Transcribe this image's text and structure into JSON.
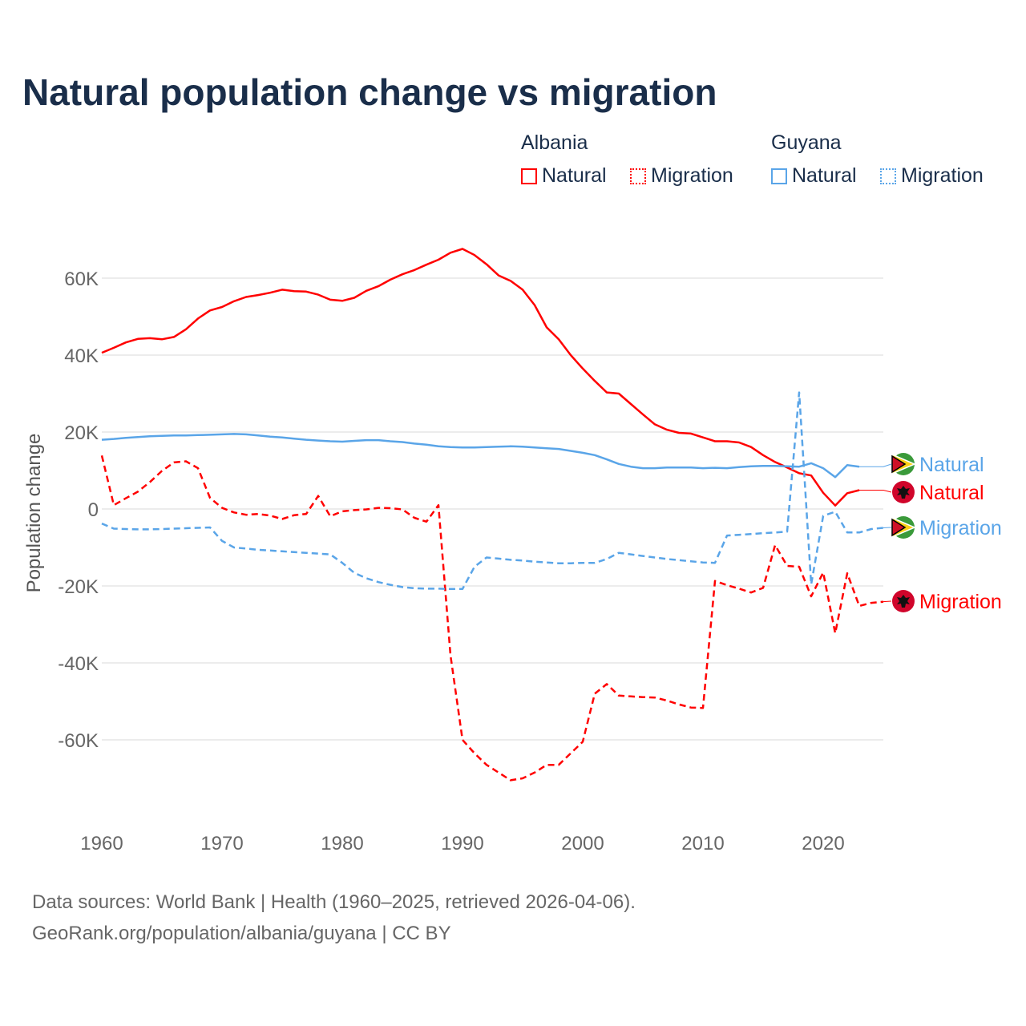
{
  "title": "Natural population change vs migration",
  "legend": {
    "groups": [
      {
        "name": "Albania",
        "items": [
          "Natural",
          "Migration"
        ]
      },
      {
        "name": "Guyana",
        "items": [
          "Natural",
          "Migration"
        ]
      }
    ]
  },
  "colors": {
    "albania": "#ff0000",
    "guyana": "#5aa5e8"
  },
  "footer": [
    "Data sources: World Bank | Health (1960–2025, retrieved 2026-04-06).",
    "GeoRank.org/population/albania/guyana | CC BY"
  ],
  "chart_data": {
    "type": "line",
    "title": "Natural population change vs migration",
    "xlabel": "",
    "ylabel": "Population change",
    "xlim": [
      1960,
      2025
    ],
    "ylim": [
      -80000,
      73000
    ],
    "x_ticks": [
      "1960",
      "1970",
      "1980",
      "1990",
      "2000",
      "2010",
      "2020"
    ],
    "y_ticks": [
      {
        "v": 60000,
        "label": "60K"
      },
      {
        "v": 40000,
        "label": "40K"
      },
      {
        "v": 20000,
        "label": "20K"
      },
      {
        "v": 0,
        "label": "0"
      },
      {
        "v": -20000,
        "label": "-20K"
      },
      {
        "v": -40000,
        "label": "-40K"
      },
      {
        "v": -60000,
        "label": "-60K"
      }
    ],
    "grid": true,
    "start_year": 1960,
    "series": [
      {
        "name": "Albania Natural",
        "country": "albania",
        "dash": false,
        "end_label": "Natural",
        "values": [
          40.6,
          41.9,
          43.3,
          44.2,
          44.4,
          44.1,
          44.7,
          46.7,
          49.5,
          51.6,
          52.5,
          54.0,
          55.1,
          55.6,
          56.2,
          57.0,
          56.6,
          56.5,
          55.7,
          54.4,
          54.1,
          54.9,
          56.7,
          57.9,
          59.6,
          61.0,
          62.1,
          63.5,
          64.8,
          66.6,
          67.6,
          66.0,
          63.6,
          60.7,
          59.3,
          57.0,
          53.0,
          47.2,
          44.1,
          40.0,
          36.5,
          33.3,
          30.3,
          30.0,
          27.3,
          24.6,
          22.0,
          20.6,
          19.8,
          19.6,
          18.6,
          17.6,
          17.6,
          17.3,
          16.1,
          14.0,
          12.2,
          10.8,
          9.3,
          8.7,
          4.2,
          0.9,
          4.1,
          4.9
        ]
      },
      {
        "name": "Albania Migration",
        "country": "albania",
        "dash": true,
        "end_label": "Migration",
        "values": [
          13.9,
          1.0,
          2.8,
          4.5,
          7.0,
          9.9,
          12.1,
          12.4,
          10.6,
          2.9,
          0.3,
          -0.9,
          -1.5,
          -1.3,
          -1.7,
          -2.6,
          -1.6,
          -1.3,
          3.4,
          -1.9,
          -0.6,
          -0.3,
          -0.1,
          0.3,
          0.2,
          -0.1,
          -2.3,
          -3.3,
          1.0,
          -38,
          -60,
          -63.5,
          -66.5,
          -68.5,
          -70.5,
          -70.0,
          -68.5,
          -66.5,
          -66.5,
          -63.5,
          -60.5,
          -48,
          -45.5,
          -48.5,
          -48.7,
          -48.9,
          -49,
          -49.8,
          -50.8,
          -51.6,
          -51.7,
          -18.7,
          -19.8,
          -20.7,
          -21.7,
          -20.5,
          -9.4,
          -14.8,
          -15,
          -22.7,
          -16.5,
          -32.3,
          -16.7,
          -25.2,
          -24.4,
          -24.1
        ]
      },
      {
        "name": "Guyana Natural",
        "country": "guyana",
        "dash": false,
        "end_label": "Natural",
        "values": [
          18.0,
          18.2,
          18.5,
          18.7,
          18.9,
          19.0,
          19.1,
          19.1,
          19.2,
          19.3,
          19.4,
          19.5,
          19.4,
          19.1,
          18.8,
          18.6,
          18.3,
          18.0,
          17.8,
          17.6,
          17.5,
          17.7,
          17.9,
          17.9,
          17.6,
          17.4,
          17.0,
          16.7,
          16.3,
          16.1,
          16.0,
          16.0,
          16.1,
          16.2,
          16.3,
          16.2,
          16.0,
          15.8,
          15.6,
          15.1,
          14.6,
          14.0,
          12.9,
          11.7,
          11.0,
          10.6,
          10.6,
          10.8,
          10.8,
          10.8,
          10.6,
          10.7,
          10.6,
          10.9,
          11.1,
          11.2,
          11.2,
          11.1,
          11.0,
          11.9,
          10.6,
          8.3,
          11.4,
          11.0
        ]
      },
      {
        "name": "Guyana Migration",
        "country": "guyana",
        "dash": true,
        "end_label": "Migration",
        "values": [
          -3.8,
          -5.1,
          -5.2,
          -5.3,
          -5.3,
          -5.2,
          -5.1,
          -5.0,
          -4.9,
          -4.8,
          -8.3,
          -10.0,
          -10.3,
          -10.6,
          -10.8,
          -11.0,
          -11.2,
          -11.4,
          -11.6,
          -11.8,
          -14.0,
          -16.6,
          -18.0,
          -19.0,
          -19.7,
          -20.3,
          -20.6,
          -20.7,
          -20.7,
          -20.8,
          -20.8,
          -15.0,
          -12.6,
          -12.9,
          -13.2,
          -13.4,
          -13.7,
          -13.9,
          -14.1,
          -14.1,
          -14.0,
          -14.0,
          -13.0,
          -11.4,
          -11.8,
          -12.2,
          -12.6,
          -13.0,
          -13.3,
          -13.6,
          -13.9,
          -14.0,
          -6.9,
          -6.7,
          -6.5,
          -6.3,
          -6.1,
          -5.9,
          30.3,
          -19.6,
          -1.8,
          -0.7,
          -6.1,
          -6.1,
          -5.2,
          -4.9
        ]
      }
    ],
    "value_unit": "thousands"
  }
}
